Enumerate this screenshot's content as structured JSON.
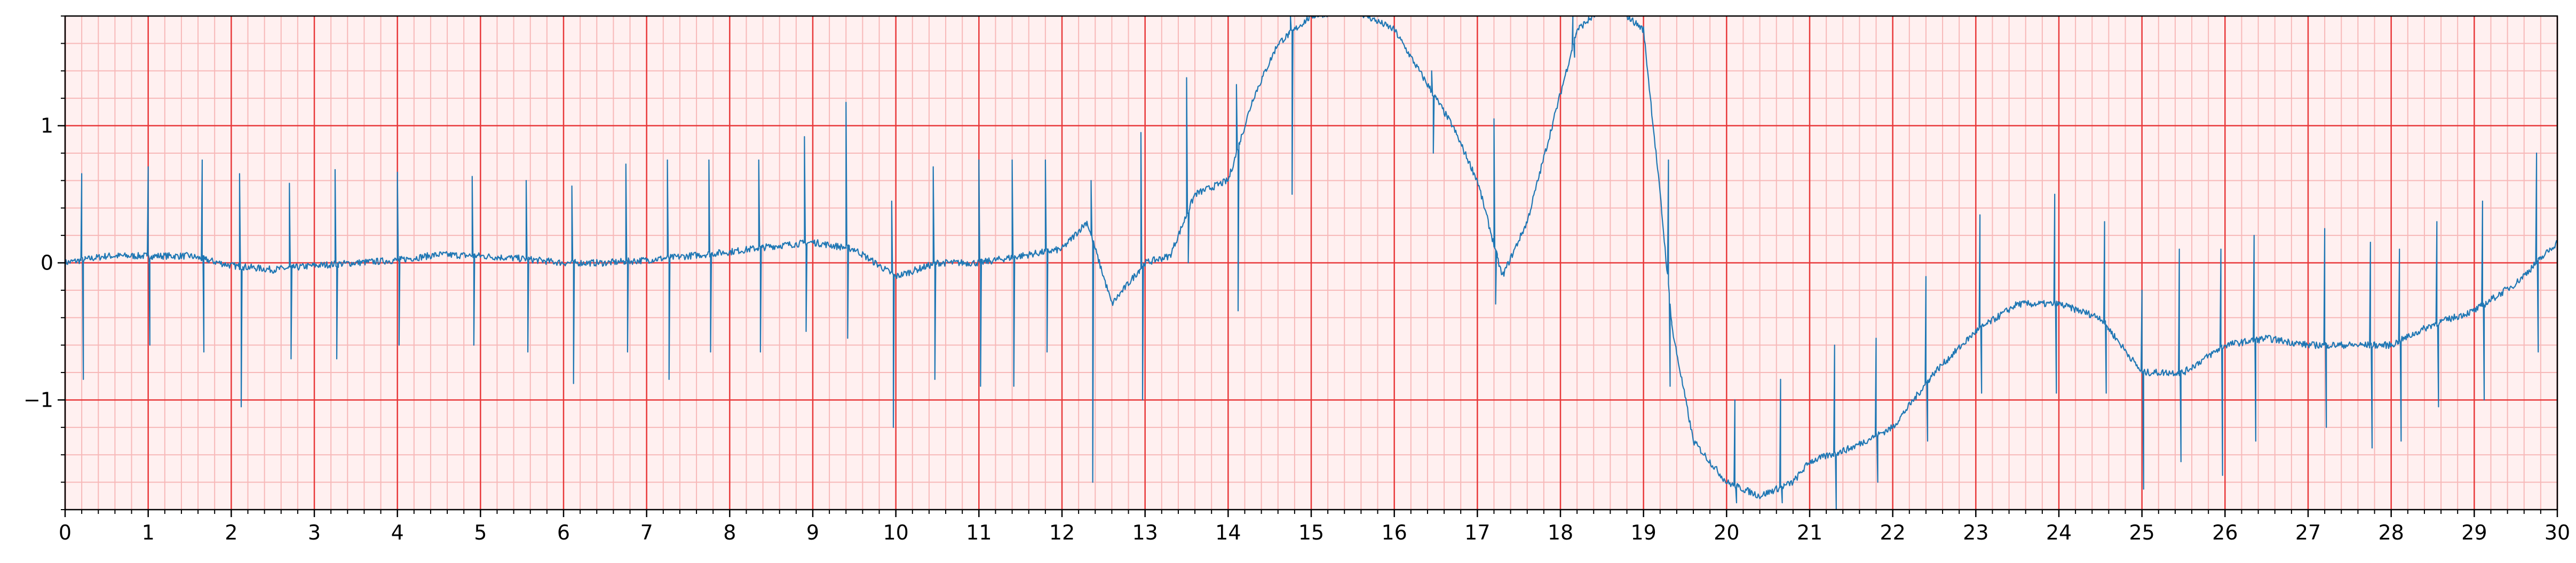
{
  "chart_data": {
    "type": "line",
    "title": "",
    "xlabel": "",
    "ylabel": "",
    "xlim": [
      0,
      30
    ],
    "ylim": [
      -1.8,
      1.8
    ],
    "x_major_step": 1,
    "x_minor_step": 0.2,
    "y_major_step": 1,
    "y_minor_step": 0.2,
    "x_tick_labels": [
      "0",
      "1",
      "2",
      "3",
      "4",
      "5",
      "6",
      "7",
      "8",
      "9",
      "10",
      "11",
      "12",
      "13",
      "14",
      "15",
      "16",
      "17",
      "18",
      "19",
      "20",
      "21",
      "22",
      "23",
      "24",
      "25",
      "26",
      "27",
      "28",
      "29",
      "30"
    ],
    "y_tick_labels": [
      {
        "value": 1,
        "label": "1"
      },
      {
        "value": 0,
        "label": "0"
      },
      {
        "value": -1,
        "label": "−1"
      }
    ],
    "grid": {
      "major": true,
      "minor": true,
      "major_color": "#e8393a",
      "minor_color": "#f7b8b8",
      "background": "#fff0f0"
    },
    "series": [
      {
        "color": "#1f77b4",
        "baseline": [
          [
            0,
            0.0
          ],
          [
            0.5,
            0.05
          ],
          [
            1,
            0.05
          ],
          [
            1.5,
            0.05
          ],
          [
            2,
            -0.02
          ],
          [
            2.5,
            -0.05
          ],
          [
            3,
            -0.02
          ],
          [
            3.5,
            0.0
          ],
          [
            4,
            0.02
          ],
          [
            4.5,
            0.06
          ],
          [
            5,
            0.05
          ],
          [
            5.5,
            0.03
          ],
          [
            6,
            0.0
          ],
          [
            6.5,
            0.0
          ],
          [
            7,
            0.02
          ],
          [
            7.5,
            0.05
          ],
          [
            8,
            0.08
          ],
          [
            8.5,
            0.12
          ],
          [
            9,
            0.15
          ],
          [
            9.5,
            0.1
          ],
          [
            10,
            -0.1
          ],
          [
            10.5,
            0.0
          ],
          [
            11,
            0.0
          ],
          [
            11.5,
            0.05
          ],
          [
            12,
            0.1
          ],
          [
            12.3,
            0.3
          ],
          [
            12.6,
            -0.3
          ],
          [
            13,
            0.0
          ],
          [
            13.3,
            0.05
          ],
          [
            13.6,
            0.5
          ],
          [
            14,
            0.6
          ],
          [
            14.3,
            1.2
          ],
          [
            14.6,
            1.6
          ],
          [
            15,
            1.8
          ],
          [
            15.5,
            1.85
          ],
          [
            16,
            1.7
          ],
          [
            16.3,
            1.4
          ],
          [
            16.7,
            1.0
          ],
          [
            17,
            0.6
          ],
          [
            17.3,
            -0.1
          ],
          [
            17.6,
            0.3
          ],
          [
            17.9,
            1.0
          ],
          [
            18.2,
            1.7
          ],
          [
            18.6,
            1.9
          ],
          [
            19,
            1.7
          ],
          [
            19.2,
            0.5
          ],
          [
            19.35,
            -0.5
          ],
          [
            19.6,
            -1.3
          ],
          [
            20,
            -1.6
          ],
          [
            20.4,
            -1.7
          ],
          [
            20.8,
            -1.6
          ],
          [
            21,
            -1.45
          ],
          [
            21.5,
            -1.35
          ],
          [
            22,
            -1.2
          ],
          [
            22.5,
            -0.8
          ],
          [
            23,
            -0.5
          ],
          [
            23.5,
            -0.3
          ],
          [
            24,
            -0.3
          ],
          [
            24.5,
            -0.4
          ],
          [
            25,
            -0.8
          ],
          [
            25.5,
            -0.8
          ],
          [
            26,
            -0.6
          ],
          [
            26.5,
            -0.55
          ],
          [
            27,
            -0.6
          ],
          [
            27.5,
            -0.6
          ],
          [
            28,
            -0.6
          ],
          [
            28.5,
            -0.45
          ],
          [
            29,
            -0.35
          ],
          [
            29.5,
            -0.15
          ],
          [
            30,
            0.15
          ]
        ],
        "spikes": [
          {
            "x": 0.2,
            "up": 0.65,
            "down": -0.85
          },
          {
            "x": 1.0,
            "up": 0.7,
            "down": -0.6
          },
          {
            "x": 1.65,
            "up": 0.75,
            "down": -0.65
          },
          {
            "x": 2.1,
            "up": 0.65,
            "down": -1.05
          },
          {
            "x": 2.7,
            "up": 0.58,
            "down": -0.7
          },
          {
            "x": 3.25,
            "up": 0.68,
            "down": -0.7
          },
          {
            "x": 4.0,
            "up": 0.66,
            "down": -0.6
          },
          {
            "x": 4.9,
            "up": 0.63,
            "down": -0.6
          },
          {
            "x": 5.55,
            "up": 0.6,
            "down": -0.65
          },
          {
            "x": 6.1,
            "up": 0.56,
            "down": -0.88
          },
          {
            "x": 6.75,
            "up": 0.72,
            "down": -0.65
          },
          {
            "x": 7.25,
            "up": 0.75,
            "down": -0.85
          },
          {
            "x": 7.75,
            "up": 0.75,
            "down": -0.65
          },
          {
            "x": 8.35,
            "up": 0.75,
            "down": -0.65
          },
          {
            "x": 8.9,
            "up": 0.92,
            "down": -0.5
          },
          {
            "x": 9.4,
            "up": 1.17,
            "down": -0.55
          },
          {
            "x": 9.95,
            "up": 0.45,
            "down": -1.2
          },
          {
            "x": 10.45,
            "up": 0.7,
            "down": -0.85
          },
          {
            "x": 11.0,
            "up": 0.75,
            "down": -0.9
          },
          {
            "x": 11.4,
            "up": 0.75,
            "down": -0.9
          },
          {
            "x": 11.8,
            "up": 0.75,
            "down": -0.65
          },
          {
            "x": 12.35,
            "up": 0.6,
            "down": -1.6
          },
          {
            "x": 12.95,
            "up": 0.95,
            "down": -1.0
          },
          {
            "x": 13.5,
            "up": 1.35,
            "down": 0.0
          },
          {
            "x": 14.1,
            "up": 1.3,
            "down": -0.35
          },
          {
            "x": 14.75,
            "up": 1.8,
            "down": 0.5
          },
          {
            "x": 16.45,
            "up": 1.4,
            "down": 0.8
          },
          {
            "x": 17.2,
            "up": 1.05,
            "down": -0.3
          },
          {
            "x": 18.15,
            "up": 1.8,
            "down": 1.5
          },
          {
            "x": 19.3,
            "up": 0.75,
            "down": -0.9
          },
          {
            "x": 20.1,
            "up": -1.0,
            "down": -1.75
          },
          {
            "x": 20.65,
            "up": -0.85,
            "down": -1.75
          },
          {
            "x": 21.3,
            "up": -0.6,
            "down": -1.8
          },
          {
            "x": 21.8,
            "up": -0.55,
            "down": -1.6
          },
          {
            "x": 22.4,
            "up": -0.1,
            "down": -1.3
          },
          {
            "x": 23.05,
            "up": 0.35,
            "down": -0.95
          },
          {
            "x": 23.95,
            "up": 0.5,
            "down": -0.95
          },
          {
            "x": 24.55,
            "up": 0.3,
            "down": -0.95
          },
          {
            "x": 25.0,
            "up": -0.2,
            "down": -1.65
          },
          {
            "x": 25.45,
            "up": 0.1,
            "down": -1.45
          },
          {
            "x": 25.95,
            "up": 0.1,
            "down": -1.55
          },
          {
            "x": 26.35,
            "up": 0.2,
            "down": -1.3
          },
          {
            "x": 27.2,
            "up": 0.25,
            "down": -1.2
          },
          {
            "x": 27.75,
            "up": 0.15,
            "down": -1.35
          },
          {
            "x": 28.1,
            "up": 0.1,
            "down": -1.3
          },
          {
            "x": 28.55,
            "up": 0.3,
            "down": -1.05
          },
          {
            "x": 29.1,
            "up": 0.45,
            "down": -1.0
          },
          {
            "x": 29.75,
            "up": 0.8,
            "down": -0.65
          }
        ]
      }
    ]
  }
}
